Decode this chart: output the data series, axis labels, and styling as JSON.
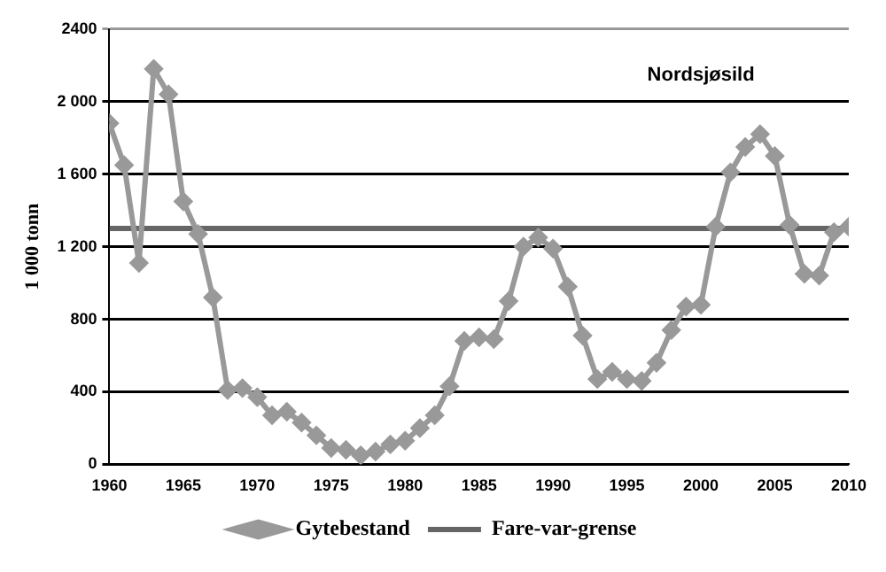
{
  "chart_data": {
    "type": "line",
    "title": "Nordsjøsild",
    "ylabel": "1 000 tonn",
    "x": [
      1960,
      1961,
      1962,
      1963,
      1964,
      1965,
      1966,
      1967,
      1968,
      1969,
      1970,
      1971,
      1972,
      1973,
      1974,
      1975,
      1976,
      1977,
      1978,
      1979,
      1980,
      1981,
      1982,
      1983,
      1984,
      1985,
      1986,
      1987,
      1988,
      1989,
      1990,
      1991,
      1992,
      1993,
      1994,
      1995,
      1996,
      1997,
      1998,
      1999,
      2000,
      2001,
      2002,
      2003,
      2004,
      2005,
      2006,
      2007,
      2008,
      2009,
      2010
    ],
    "series": [
      {
        "name": "Gytebestand",
        "color": "#999999",
        "values": [
          1880,
          1650,
          1110,
          2180,
          2040,
          1450,
          1270,
          920,
          410,
          420,
          370,
          270,
          290,
          230,
          160,
          90,
          80,
          50,
          70,
          110,
          130,
          200,
          270,
          430,
          680,
          700,
          690,
          900,
          1200,
          1250,
          1190,
          980,
          710,
          470,
          510,
          470,
          460,
          560,
          740,
          870,
          880,
          1310,
          1610,
          1750,
          1820,
          1700,
          1320,
          1050,
          1040,
          1280,
          1310
        ]
      }
    ],
    "ref_lines": [
      {
        "axis": "y",
        "value": 1300,
        "label": "Fare-var-grense",
        "color": "#666666"
      }
    ],
    "xlim": [
      1960,
      2010
    ],
    "xticks": [
      1960,
      1965,
      1970,
      1975,
      1980,
      1985,
      1990,
      1995,
      2000,
      2005,
      2010
    ],
    "ylim": [
      0,
      2400
    ],
    "yticks": [
      0,
      400,
      800,
      {
        "value": 1200,
        "label": "1 200"
      },
      {
        "value": 1600,
        "label": "1 600"
      },
      {
        "value": 2000,
        "label": "2 000"
      },
      2400
    ],
    "grid": "y",
    "legend": "bottom",
    "marker": "diamond",
    "line_style": "solid"
  }
}
